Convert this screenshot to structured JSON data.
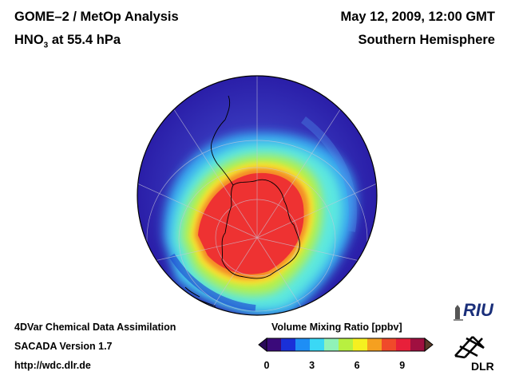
{
  "header": {
    "title_line1": "GOME–2 / MetOp Analysis",
    "title_line2_species": "HNO",
    "title_line2_sub": "3",
    "title_line2_rest": " at 55.4 hPa",
    "datetime": "May 12, 2009, 12:00 GMT",
    "hemisphere": "Southern Hemisphere"
  },
  "footer": {
    "line1": "4DVar Chemical Data Assimilation",
    "line2": "SACADA Version 1.7",
    "line3": "http://wdc.dlr.de"
  },
  "colorbar": {
    "title": "Volume Mixing Ratio [ppbv]",
    "min": 0,
    "max": 10.5,
    "ticks": [
      "0",
      "3",
      "6",
      "9"
    ],
    "tick_values": [
      0,
      3,
      6,
      9
    ],
    "colors": [
      "#3a0a7a",
      "#1a30d8",
      "#1e8ef5",
      "#3ad8f5",
      "#90f2b8",
      "#b8f040",
      "#f5f020",
      "#f5a020",
      "#f04a2a",
      "#e8203a",
      "#a01040"
    ]
  },
  "logos": {
    "riu": "RIU",
    "dlr": "DLR"
  },
  "colors": {
    "background_field": "#3a2fb8",
    "high_field": "#f03a3a",
    "grid": "#c8c8d8",
    "coast": "#000000"
  }
}
